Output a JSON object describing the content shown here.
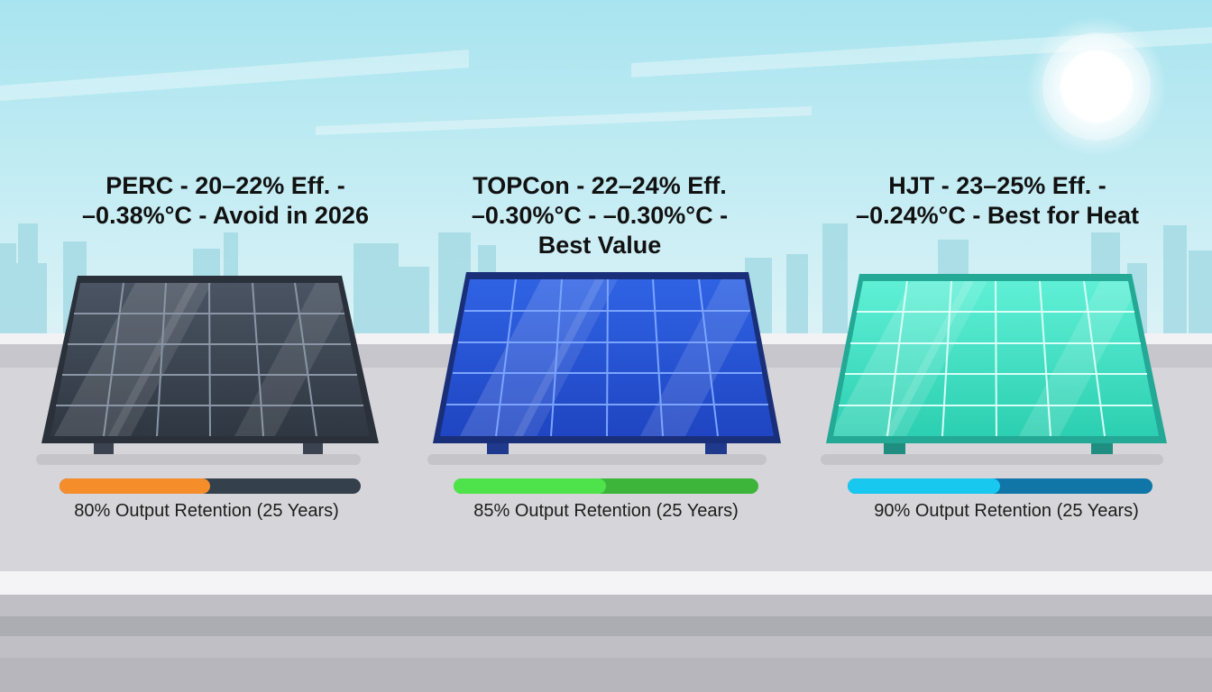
{
  "colors": {
    "sky_top": "#a8e4ef",
    "sky_bottom": "#d9f2f6",
    "roof": "#d4d4d8",
    "perc_panel": "#3a4350",
    "topcon_panel": "#2a56d4",
    "hjt_panel": "#3fd9be",
    "perc_bar": "#f58d2a",
    "topcon_bar": "#4ee34a",
    "hjt_bar": "#18c8ef",
    "bar_track": "#34404c"
  },
  "panels": [
    {
      "id": "perc",
      "label_lines": [
        "PERC - 20–22% Eff. -",
        "–0.38%°C - Avoid in 2026"
      ],
      "retention_percent": 80,
      "retention_text": "80% Output Retention (25 Years)"
    },
    {
      "id": "topcon",
      "label_lines": [
        "TOPCon - 22–24% Eff.",
        "–0.30%°C - –0.30%°C -",
        "Best Value"
      ],
      "retention_percent": 85,
      "retention_text": "85% Output Retention (25 Years)"
    },
    {
      "id": "hjt",
      "label_lines": [
        "HJT - 23–25% Eff. -",
        "–0.24%°C - Best for Heat"
      ],
      "retention_percent": 90,
      "retention_text": "90% Output Retention (25 Years)"
    }
  ]
}
